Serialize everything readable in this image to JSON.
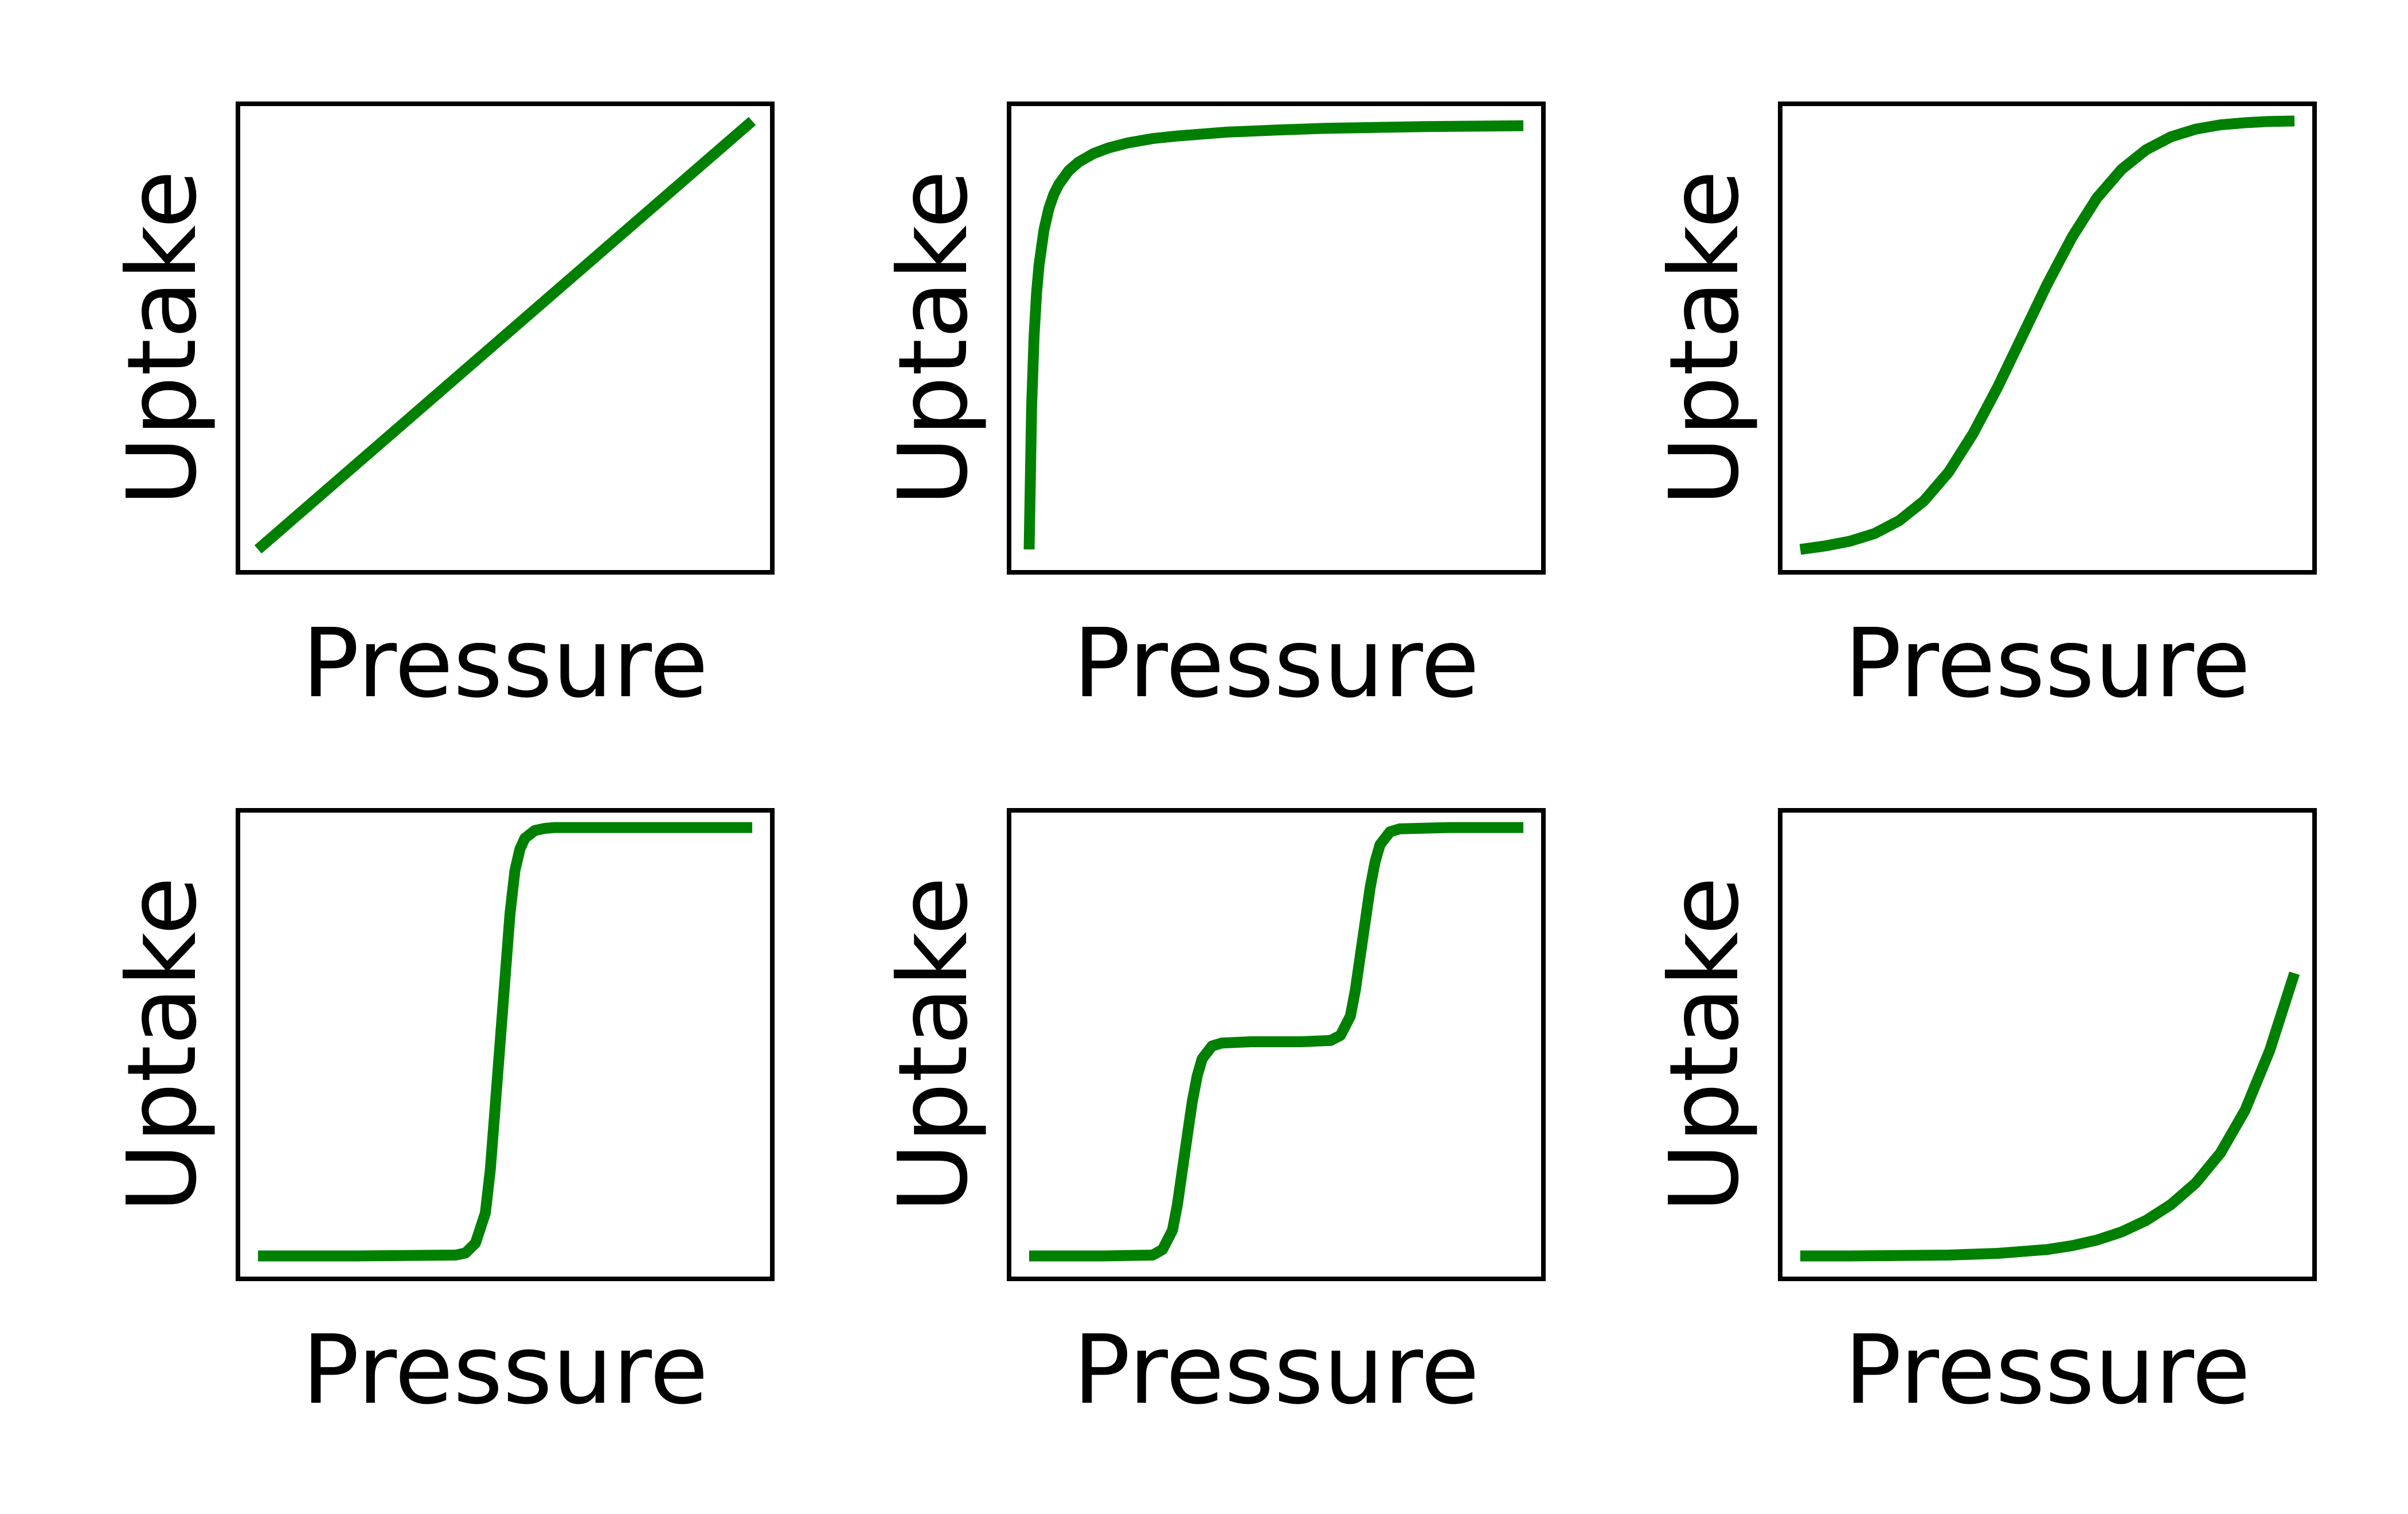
{
  "colors": {
    "line": "#008000",
    "frame": "#000000",
    "background": "#ffffff"
  },
  "chart_data": [
    {
      "type": "line",
      "title": "",
      "xlabel": "Pressure",
      "ylabel": "Uptake",
      "ticks": "none",
      "grid": false,
      "xlim": [
        0,
        1
      ],
      "ylim": [
        0,
        1
      ],
      "series": [
        {
          "x": [
            0,
            0.1,
            0.2,
            0.3,
            0.4,
            0.5,
            0.6,
            0.7,
            0.8,
            0.9,
            1
          ],
          "y": [
            0,
            0.1,
            0.2,
            0.3,
            0.4,
            0.5,
            0.6,
            0.7,
            0.8,
            0.9,
            1
          ]
        }
      ]
    },
    {
      "type": "line",
      "title": "",
      "xlabel": "Pressure",
      "ylabel": "Uptake",
      "ticks": "none",
      "grid": false,
      "xlim": [
        0,
        1
      ],
      "ylim": [
        0,
        1
      ],
      "series": [
        {
          "x": [
            0,
            0.005,
            0.01,
            0.015,
            0.02,
            0.03,
            0.04,
            0.05,
            0.06,
            0.08,
            0.1,
            0.13,
            0.16,
            0.2,
            0.25,
            0.3,
            0.4,
            0.5,
            0.6,
            0.7,
            0.8,
            0.9,
            1
          ],
          "y": [
            0,
            0.331,
            0.497,
            0.597,
            0.663,
            0.746,
            0.796,
            0.829,
            0.852,
            0.884,
            0.904,
            0.924,
            0.937,
            0.949,
            0.959,
            0.965,
            0.974,
            0.979,
            0.983,
            0.985,
            0.987,
            0.988,
            0.989
          ]
        }
      ]
    },
    {
      "type": "line",
      "title": "",
      "xlabel": "Pressure",
      "ylabel": "Uptake",
      "ticks": "none",
      "grid": false,
      "xlim": [
        0,
        1
      ],
      "ylim": [
        0,
        1
      ],
      "series": [
        {
          "x": [
            0,
            0.05,
            0.1,
            0.15,
            0.2,
            0.25,
            0.3,
            0.35,
            0.4,
            0.45,
            0.5,
            0.55,
            0.6,
            0.65,
            0.7,
            0.75,
            0.8,
            0.85,
            0.9,
            0.95,
            1
          ],
          "y": [
            0,
            0.008,
            0.019,
            0.037,
            0.067,
            0.113,
            0.18,
            0.271,
            0.38,
            0.5,
            0.62,
            0.729,
            0.82,
            0.887,
            0.933,
            0.963,
            0.981,
            0.991,
            0.996,
            0.999,
            1
          ]
        }
      ]
    },
    {
      "type": "line",
      "title": "",
      "xlabel": "Pressure",
      "ylabel": "Uptake",
      "ticks": "none",
      "grid": false,
      "xlim": [
        0,
        1
      ],
      "ylim": [
        0,
        1
      ],
      "series": [
        {
          "x": [
            0,
            0.2,
            0.4,
            0.42,
            0.44,
            0.46,
            0.47,
            0.48,
            0.49,
            0.5,
            0.51,
            0.52,
            0.53,
            0.54,
            0.56,
            0.58,
            0.6,
            0.8,
            1
          ],
          "y": [
            0,
            0,
            0.002,
            0.007,
            0.03,
            0.1,
            0.2,
            0.35,
            0.5,
            0.65,
            0.8,
            0.9,
            0.95,
            0.975,
            0.993,
            0.998,
            1,
            1,
            1
          ]
        }
      ]
    },
    {
      "type": "line",
      "title": "",
      "xlabel": "Pressure",
      "ylabel": "Uptake",
      "ticks": "none",
      "grid": false,
      "xlim": [
        0,
        1
      ],
      "ylim": [
        0,
        1
      ],
      "series": [
        {
          "x": [
            0,
            0.15,
            0.25,
            0.27,
            0.29,
            0.3,
            0.31,
            0.32,
            0.33,
            0.34,
            0.35,
            0.37,
            0.39,
            0.45,
            0.55,
            0.61,
            0.63,
            0.65,
            0.66,
            0.67,
            0.68,
            0.69,
            0.7,
            0.71,
            0.73,
            0.75,
            0.85,
            1
          ],
          "y": [
            0,
            0,
            0.002,
            0.015,
            0.06,
            0.12,
            0.2,
            0.28,
            0.36,
            0.42,
            0.46,
            0.49,
            0.497,
            0.5,
            0.5,
            0.503,
            0.515,
            0.56,
            0.62,
            0.7,
            0.78,
            0.86,
            0.92,
            0.96,
            0.99,
            0.997,
            1,
            1
          ]
        }
      ]
    },
    {
      "type": "line",
      "title": "",
      "xlabel": "Pressure",
      "ylabel": "Uptake",
      "ticks": "none",
      "grid": false,
      "xlim": [
        0,
        1
      ],
      "ylim": [
        0,
        1
      ],
      "series": [
        {
          "x": [
            0,
            0.1,
            0.2,
            0.3,
            0.4,
            0.5,
            0.55,
            0.6,
            0.65,
            0.7,
            0.75,
            0.8,
            0.85,
            0.9,
            0.95,
            1
          ],
          "y": [
            0,
            0,
            0.001,
            0.002,
            0.006,
            0.015,
            0.024,
            0.037,
            0.056,
            0.083,
            0.12,
            0.17,
            0.24,
            0.34,
            0.48,
            0.66
          ]
        }
      ]
    }
  ]
}
